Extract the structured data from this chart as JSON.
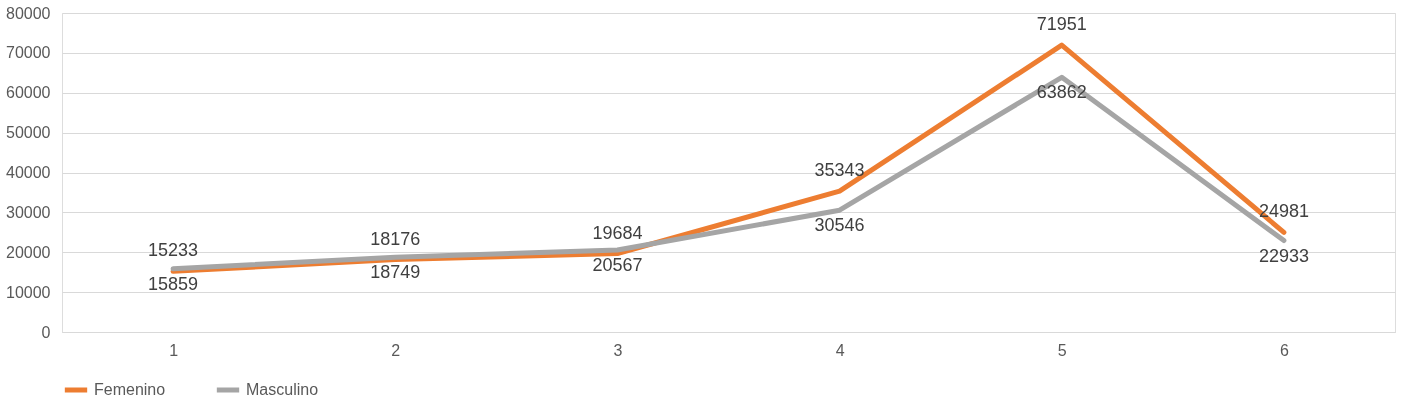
{
  "chart_data": {
    "type": "line",
    "categories": [
      "1",
      "2",
      "3",
      "4",
      "5",
      "6"
    ],
    "series": [
      {
        "name": "Femenino",
        "color": "#ed7d31",
        "values": [
          15233,
          18176,
          19684,
          35343,
          71951,
          24981
        ]
      },
      {
        "name": "Masculino",
        "color": "#a5a5a5",
        "values": [
          15859,
          18749,
          20567,
          30546,
          63862,
          22933
        ]
      }
    ],
    "ylim": [
      0,
      80000
    ],
    "yticks": [
      0,
      10000,
      20000,
      30000,
      40000,
      50000,
      60000,
      70000,
      80000
    ],
    "grid": "y",
    "legend": "bottom",
    "data_labels": true,
    "marker": "none",
    "line_style": "solid"
  }
}
